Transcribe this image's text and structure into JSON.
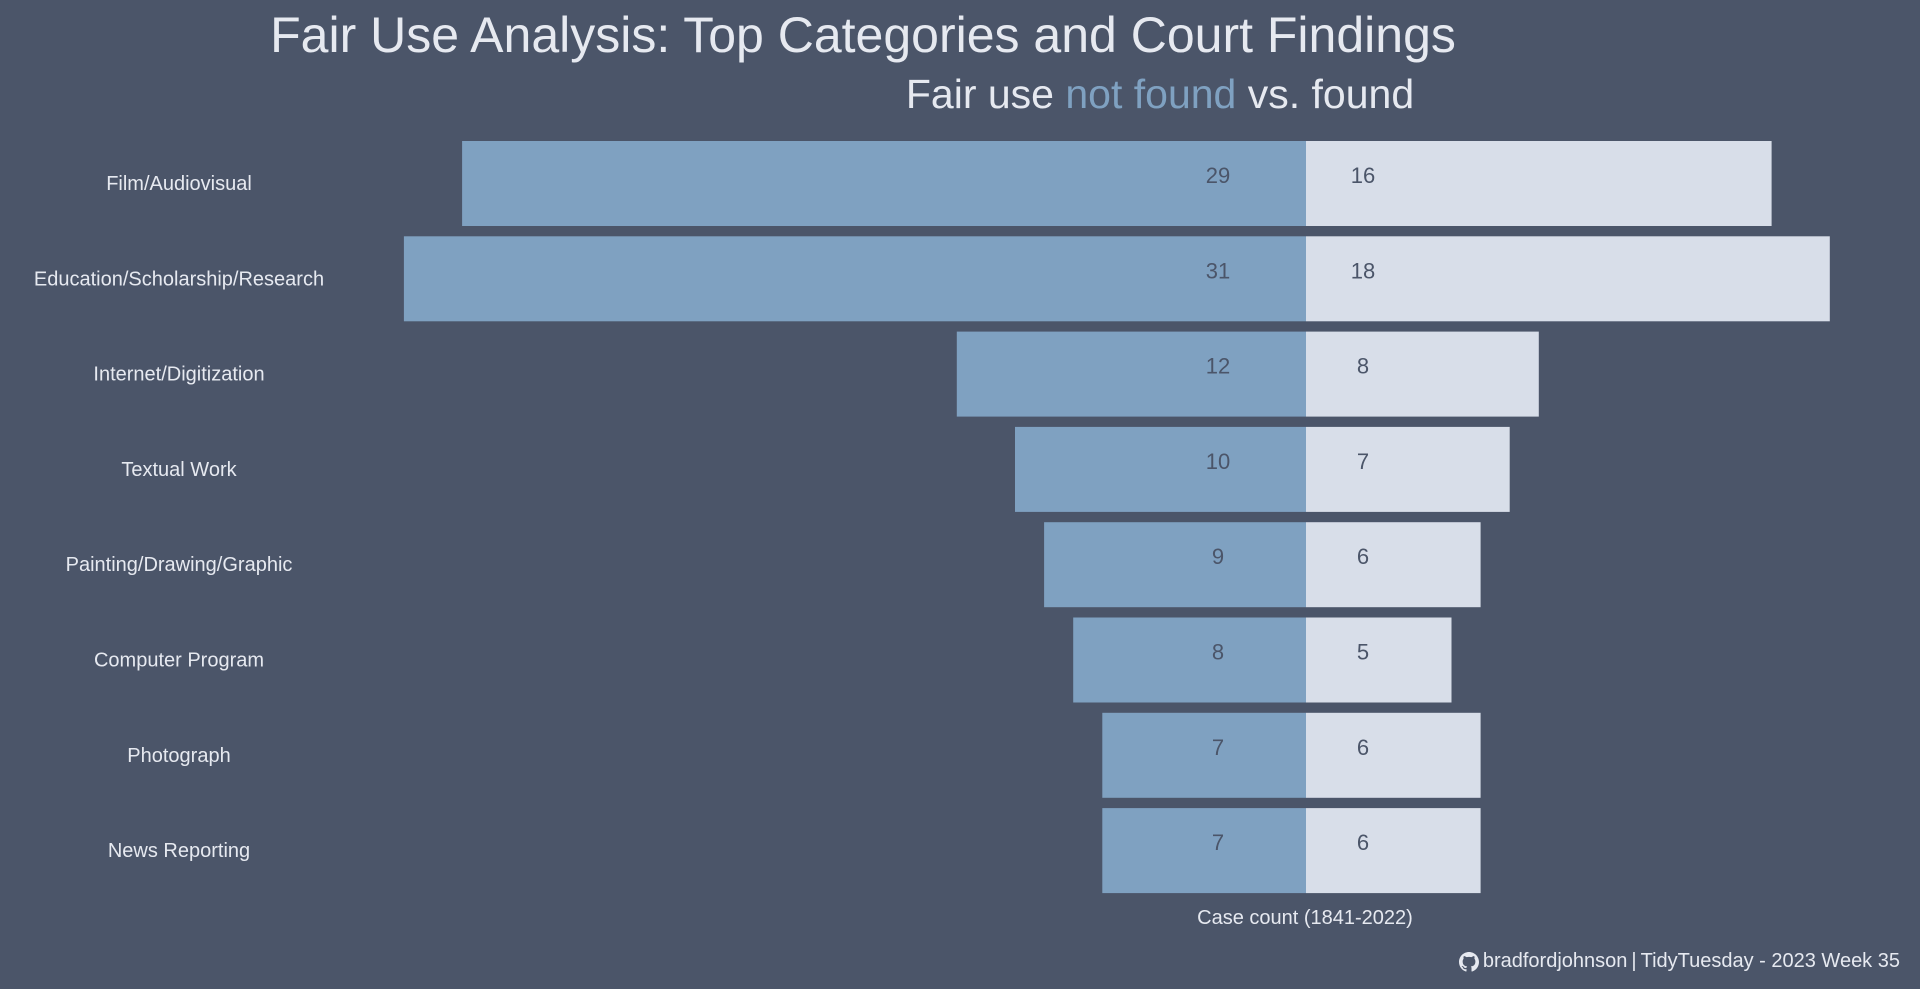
{
  "chart_data": {
    "type": "bar",
    "title": "Fair Use Analysis: Top Categories and Court Findings",
    "subtitle": {
      "prefix": "Fair use ",
      "highlight": "not found",
      "suffix": " vs. found"
    },
    "xlabel": "Case count (1841-2022)",
    "categories": [
      "Film/Audiovisual",
      "Education/Scholarship/Research",
      "Internet/Digitization",
      "Textual Work",
      "Painting/Drawing/Graphic",
      "Computer Program",
      "Photograph",
      "News Reporting"
    ],
    "series": [
      {
        "name": "not found",
        "values": [
          29,
          31,
          12,
          10,
          9,
          8,
          7,
          7
        ]
      },
      {
        "name": "found",
        "values": [
          16,
          18,
          8,
          7,
          6,
          5,
          6,
          6
        ]
      }
    ],
    "grid": false
  },
  "colors": {
    "background": "#4b5569",
    "not_found": "#7fa1c1",
    "found": "#d8dee9",
    "text_light": "#e6e9f0",
    "value_label": "#4b5569"
  },
  "caption": {
    "icon": "github-icon",
    "author": "bradfordjohnson",
    "separator": "|",
    "source": "TidyTuesday - 2023 Week 35"
  }
}
